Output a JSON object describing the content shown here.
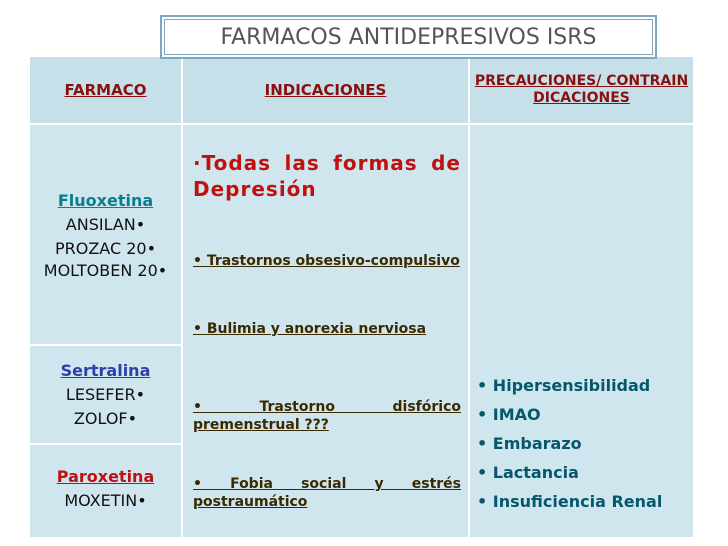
{
  "title": "FARMACOS ANTIDEPRESIVOS ISRS",
  "table": {
    "headers": [
      "FARMACO",
      "INDICACIONES",
      "PRECAUCIONES/ CONTRAINDICACIONES"
    ],
    "drugs": [
      {
        "name": "Fluoxetina",
        "brands": [
          "ANSILAN•",
          "PROZAC 20•",
          "MOLTOBEN 20•"
        ]
      },
      {
        "name": "Sertralina",
        "brands": [
          "LESEFER•",
          "ZOLOF•"
        ]
      },
      {
        "name": "Paroxetina",
        "brands": [
          "MOXETIN•"
        ]
      }
    ],
    "indications": [
      "·Todas las formas de Depresión",
      "• Trastornos obsesivo-compulsivo",
      "• Bulimia y anorexia nerviosa",
      "• Trastorno disfórico premenstrual ???",
      "• Fobia social y estrés postraumático"
    ],
    "precautions": [
      "• Hipersensibilidad",
      "• IMAO",
      "• Embarazo",
      "• Lactancia",
      "• Insuficiencia Renal"
    ]
  }
}
